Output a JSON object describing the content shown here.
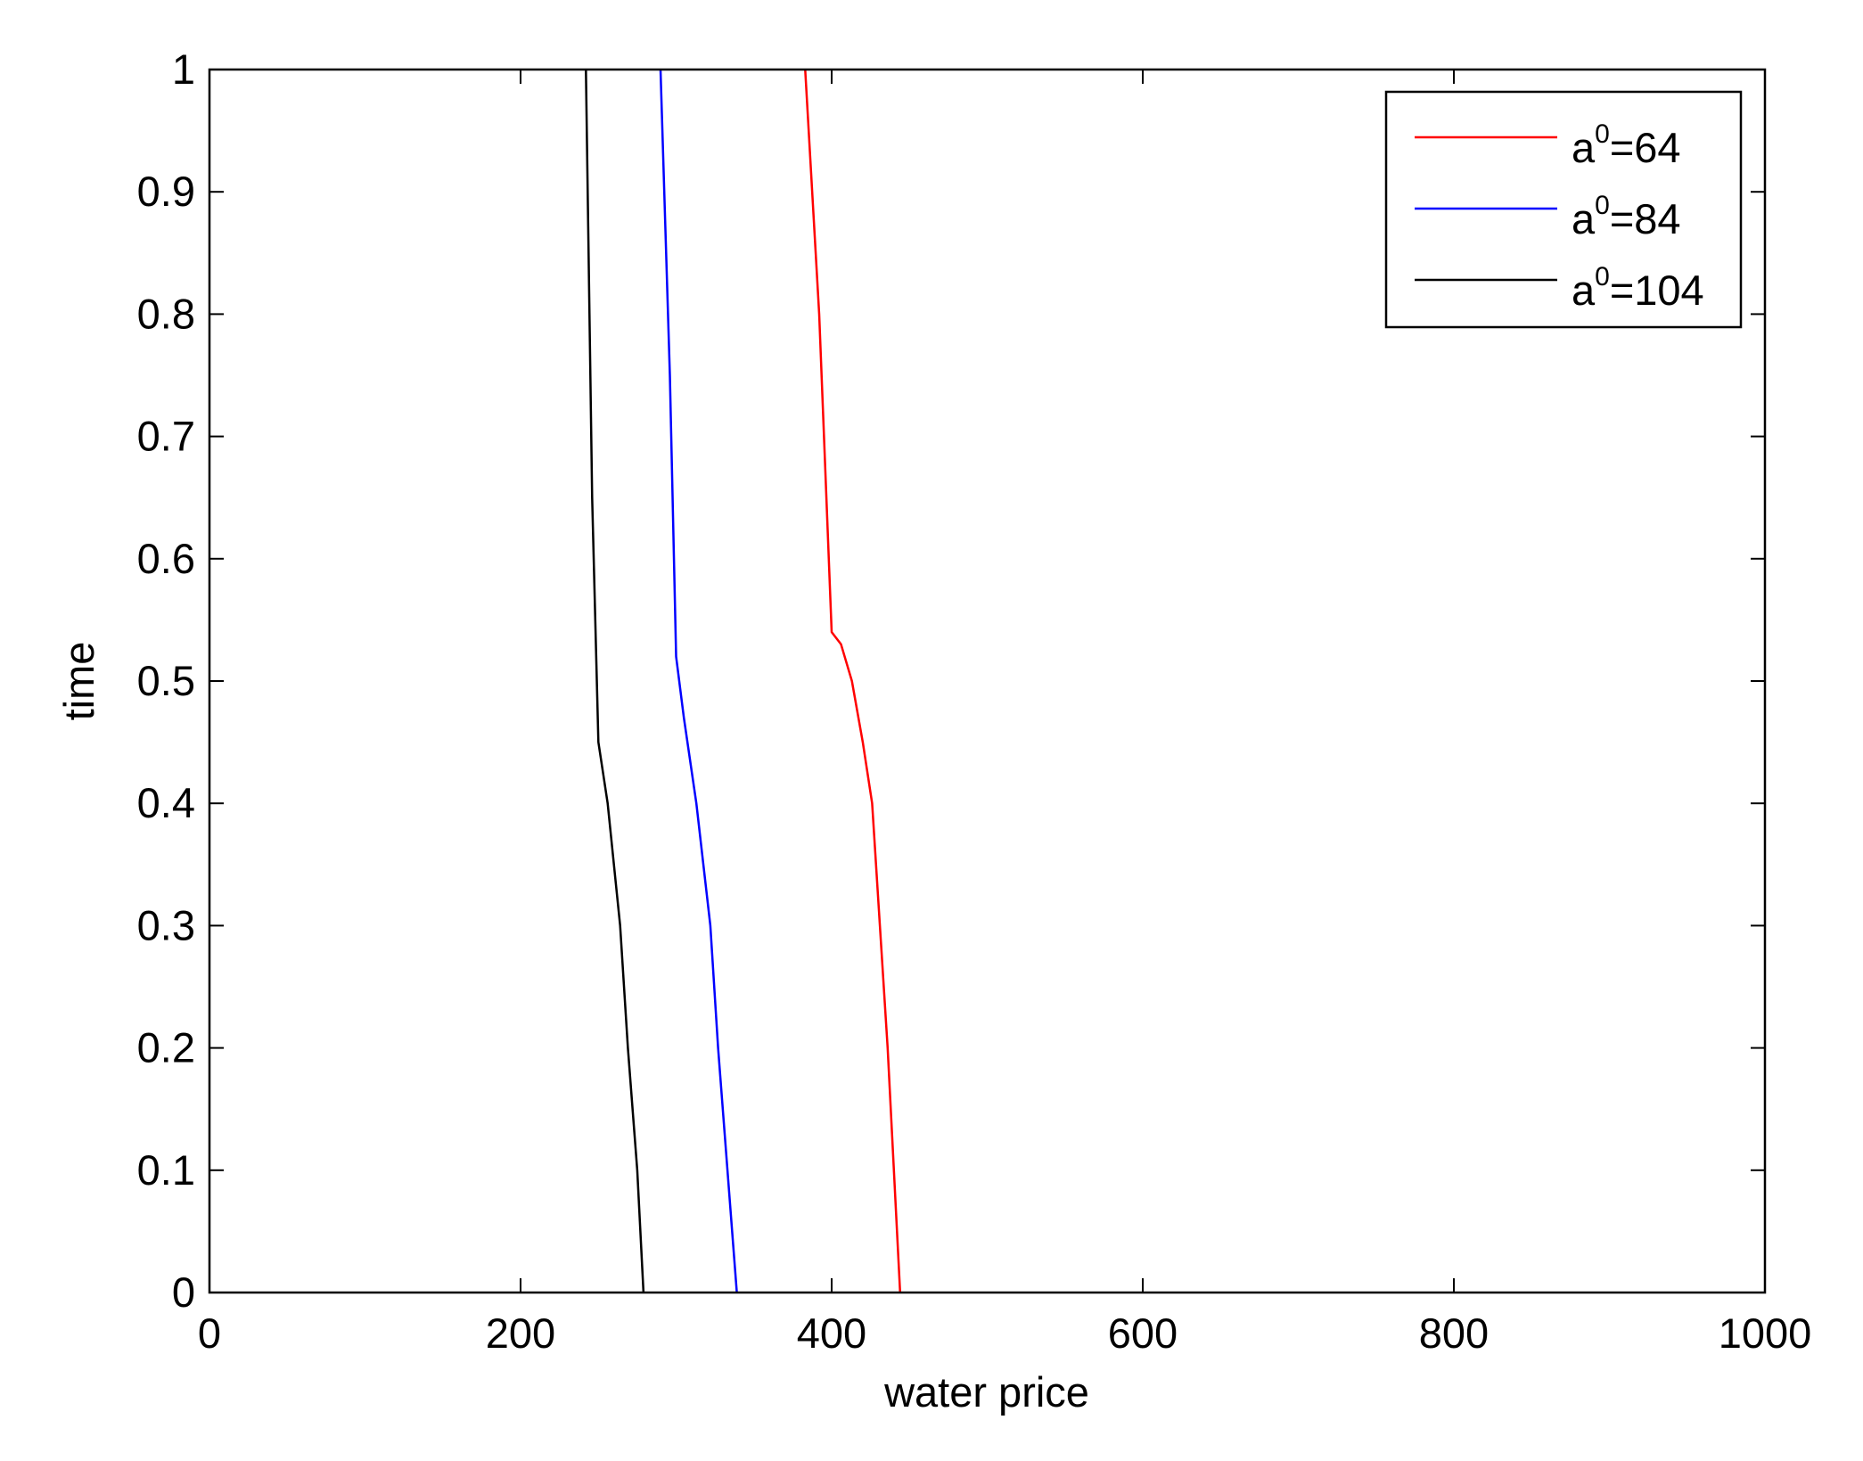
{
  "chart_data": {
    "type": "line",
    "title": "",
    "xlabel": "water price",
    "ylabel": "time",
    "xlim": [
      0,
      1000
    ],
    "ylim": [
      0,
      1
    ],
    "xticks": [
      0,
      200,
      400,
      600,
      800,
      1000
    ],
    "xtick_labels": [
      "0",
      "200",
      "400",
      "600",
      "800",
      "1000"
    ],
    "yticks": [
      0,
      0.1,
      0.2,
      0.3,
      0.4,
      0.5,
      0.6,
      0.7,
      0.8,
      0.9,
      1
    ],
    "ytick_labels": [
      "0",
      "0.1",
      "0.2",
      "0.3",
      "0.4",
      "0.5",
      "0.6",
      "0.7",
      "0.8",
      "0.9",
      "1"
    ],
    "grid": false,
    "legend_position": "top-right",
    "series": [
      {
        "name": "a0=64",
        "legend_base": "a",
        "legend_sup": "0",
        "legend_rest": "=64",
        "color": "#ff0000",
        "x": [
          444,
          440,
          436,
          431,
          426,
          420,
          413,
          406,
          400,
          392,
          383
        ],
        "y": [
          0,
          0.1,
          0.2,
          0.3,
          0.4,
          0.45,
          0.5,
          0.53,
          0.54,
          0.8,
          1
        ]
      },
      {
        "name": "a0=84",
        "legend_base": "a",
        "legend_sup": "0",
        "legend_rest": "=84",
        "color": "#0000ff",
        "x": [
          339,
          333,
          327,
          322,
          313,
          305,
          300,
          296,
          290
        ],
        "y": [
          0,
          0.1,
          0.2,
          0.3,
          0.4,
          0.47,
          0.52,
          0.75,
          1
        ]
      },
      {
        "name": "a0=104",
        "legend_base": "a",
        "legend_sup": "0",
        "legend_rest": "=104",
        "color": "#000000",
        "x": [
          279,
          275,
          269,
          264,
          256,
          250,
          246,
          242
        ],
        "y": [
          0,
          0.1,
          0.2,
          0.3,
          0.4,
          0.45,
          0.65,
          1
        ]
      }
    ]
  }
}
